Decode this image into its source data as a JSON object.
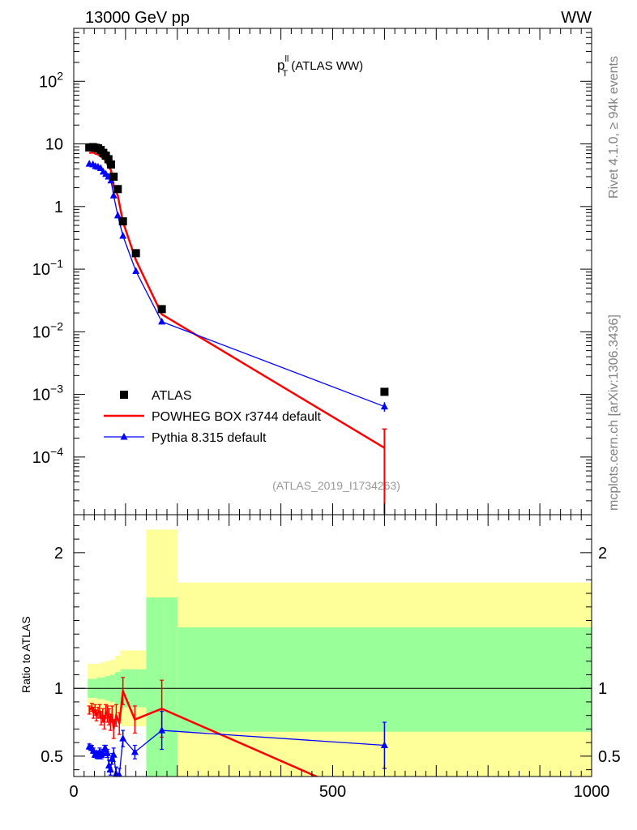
{
  "header": {
    "left": "13000 GeV pp",
    "right": "WW"
  },
  "side": {
    "rivet": "Rivet 4.1.0, ≥ 94k events",
    "mcplots": "mcplots.cern.ch [arXiv:1306.3436]"
  },
  "chart_data": {
    "type": "scatter",
    "title": {
      "main": "p",
      "sup": "ll",
      "sub": "T",
      "rest": " (ATLAS WW)"
    },
    "reference": "(ATLAS_2019_I1734263)",
    "xlim": [
      0,
      1000
    ],
    "main": {
      "ylog": true,
      "ylim": [
        1.2e-05,
        700
      ],
      "yticks": [
        {
          "base": "10",
          "exp": "2",
          "v": 100
        },
        {
          "base": "10",
          "exp": "",
          "v": 10
        },
        {
          "base": "1",
          "exp": "",
          "v": 1
        },
        {
          "base": "10",
          "exp": "−1",
          "v": 0.1
        },
        {
          "base": "10",
          "exp": "−2",
          "v": 0.01
        },
        {
          "base": "10",
          "exp": "−3",
          "v": 0.001
        },
        {
          "base": "10",
          "exp": "−4",
          "v": 0.0001
        }
      ]
    },
    "ratio": {
      "ylabel": "Ratio to ATLAS",
      "ylim": [
        0.35,
        2.28
      ],
      "yticks": [
        {
          "label": "0.5",
          "v": 0.5
        },
        {
          "label": "1",
          "v": 1
        },
        {
          "label": "2",
          "v": 2
        }
      ]
    },
    "xticks": [
      {
        "label": "0",
        "v": 0
      },
      {
        "label": "500",
        "v": 500
      },
      {
        "label": "1000",
        "v": 1000
      }
    ],
    "bins": [
      {
        "lo": 27,
        "hi": 35,
        "g": [
          0.93,
          1.07
        ],
        "y": [
          0.82,
          1.18
        ]
      },
      {
        "lo": 35,
        "hi": 40,
        "g": [
          0.93,
          1.07
        ],
        "y": [
          0.82,
          1.18
        ]
      },
      {
        "lo": 40,
        "hi": 45,
        "g": [
          0.93,
          1.07
        ],
        "y": [
          0.82,
          1.18
        ]
      },
      {
        "lo": 45,
        "hi": 50,
        "g": [
          0.92,
          1.08
        ],
        "y": [
          0.82,
          1.18
        ]
      },
      {
        "lo": 50,
        "hi": 55,
        "g": [
          0.92,
          1.08
        ],
        "y": [
          0.81,
          1.19
        ]
      },
      {
        "lo": 55,
        "hi": 60,
        "g": [
          0.92,
          1.08
        ],
        "y": [
          0.81,
          1.19
        ]
      },
      {
        "lo": 60,
        "hi": 65,
        "g": [
          0.91,
          1.09
        ],
        "y": [
          0.8,
          1.2
        ]
      },
      {
        "lo": 65,
        "hi": 70,
        "g": [
          0.91,
          1.09
        ],
        "y": [
          0.8,
          1.2
        ]
      },
      {
        "lo": 70,
        "hi": 75,
        "g": [
          0.9,
          1.1
        ],
        "y": [
          0.79,
          1.21
        ]
      },
      {
        "lo": 75,
        "hi": 80,
        "g": [
          0.9,
          1.1
        ],
        "y": [
          0.79,
          1.21
        ]
      },
      {
        "lo": 80,
        "hi": 90,
        "g": [
          0.88,
          1.12
        ],
        "y": [
          0.76,
          1.24
        ]
      },
      {
        "lo": 90,
        "hi": 100,
        "g": [
          0.86,
          1.14
        ],
        "y": [
          0.72,
          1.28
        ]
      },
      {
        "lo": 100,
        "hi": 110,
        "g": [
          0.86,
          1.14
        ],
        "y": [
          0.72,
          1.28
        ]
      },
      {
        "lo": 110,
        "hi": 120,
        "g": [
          0.86,
          1.14
        ],
        "y": [
          0.72,
          1.28
        ]
      },
      {
        "lo": 120,
        "hi": 130,
        "g": [
          0.86,
          1.14
        ],
        "y": [
          0.72,
          1.28
        ]
      },
      {
        "lo": 130,
        "hi": 140,
        "g": [
          0.86,
          1.14
        ],
        "y": [
          0.72,
          1.28
        ]
      },
      {
        "lo": 140,
        "hi": 155,
        "g": [
          0.3,
          1.67
        ],
        "y": [
          0.3,
          2.17
        ]
      },
      {
        "lo": 155,
        "hi": 175,
        "g": [
          0.3,
          1.67
        ],
        "y": [
          0.3,
          2.17
        ]
      },
      {
        "lo": 175,
        "hi": 200,
        "g": [
          0.3,
          1.67
        ],
        "y": [
          0.3,
          2.17
        ]
      },
      {
        "lo": 200,
        "hi": 1000,
        "g": [
          0.68,
          1.45
        ],
        "y": [
          0.3,
          1.78
        ]
      }
    ],
    "series": [
      {
        "name": "ATLAS",
        "color": "#000000",
        "marker": "square",
        "points": [
          {
            "x": 30,
            "y": 8.8
          },
          {
            "x": 37,
            "y": 8.9
          },
          {
            "x": 42,
            "y": 8.7
          },
          {
            "x": 47,
            "y": 8.5
          },
          {
            "x": 52,
            "y": 8.0
          },
          {
            "x": 57,
            "y": 7.2
          },
          {
            "x": 62,
            "y": 6.5
          },
          {
            "x": 67,
            "y": 5.7
          },
          {
            "x": 72,
            "y": 4.7
          },
          {
            "x": 77,
            "y": 3.0
          },
          {
            "x": 85,
            "y": 1.9
          },
          {
            "x": 95,
            "y": 0.58
          },
          {
            "x": 120,
            "y": 0.18
          },
          {
            "x": 170,
            "y": 0.023
          },
          {
            "x": 600,
            "y": 0.0011
          }
        ]
      },
      {
        "name": "POWHEG BOX r3744 default",
        "color": "#ff0000",
        "marker": "line",
        "points": [
          {
            "x": 30,
            "y": 7.2
          },
          {
            "x": 37,
            "y": 7.3
          },
          {
            "x": 42,
            "y": 7.0
          },
          {
            "x": 47,
            "y": 6.8
          },
          {
            "x": 52,
            "y": 6.3
          },
          {
            "x": 57,
            "y": 5.9
          },
          {
            "x": 62,
            "y": 5.4
          },
          {
            "x": 67,
            "y": 4.3
          },
          {
            "x": 72,
            "y": 3.8
          },
          {
            "x": 77,
            "y": 2.1
          },
          {
            "x": 85,
            "y": 1.5
          },
          {
            "x": 95,
            "y": 0.57
          },
          {
            "x": 120,
            "y": 0.14
          },
          {
            "x": 170,
            "y": 0.019
          },
          {
            "x": 600,
            "y": 0.00014
          }
        ],
        "ratio": [
          {
            "x": 30,
            "r": 0.84,
            "e": 0.03
          },
          {
            "x": 35,
            "r": 0.86,
            "e": 0.03
          },
          {
            "x": 38,
            "r": 0.82,
            "e": 0.04
          },
          {
            "x": 41,
            "r": 0.84,
            "e": 0.04
          },
          {
            "x": 44,
            "r": 0.8,
            "e": 0.04
          },
          {
            "x": 47,
            "r": 0.82,
            "e": 0.04
          },
          {
            "x": 50,
            "r": 0.83,
            "e": 0.05
          },
          {
            "x": 53,
            "r": 0.78,
            "e": 0.05
          },
          {
            "x": 56,
            "r": 0.8,
            "e": 0.05
          },
          {
            "x": 59,
            "r": 0.75,
            "e": 0.05
          },
          {
            "x": 62,
            "r": 0.83,
            "e": 0.05
          },
          {
            "x": 65,
            "r": 0.81,
            "e": 0.06
          },
          {
            "x": 68,
            "r": 0.79,
            "e": 0.06
          },
          {
            "x": 71,
            "r": 0.75,
            "e": 0.06
          },
          {
            "x": 74,
            "r": 0.81,
            "e": 0.06
          },
          {
            "x": 77,
            "r": 0.7,
            "e": 0.07
          },
          {
            "x": 82,
            "r": 0.8,
            "e": 0.08
          },
          {
            "x": 88,
            "r": 0.74,
            "e": 0.08
          },
          {
            "x": 95,
            "r": 0.98,
            "e": 0.1
          },
          {
            "x": 118,
            "r": 0.77,
            "e": 0.1
          },
          {
            "x": 170,
            "r": 0.85,
            "e": 0.21
          },
          {
            "x": 600,
            "r": 0.13,
            "e": 0.12
          }
        ]
      },
      {
        "name": "Pythia 8.315 default",
        "color": "#0000ff",
        "marker": "triangle",
        "points": [
          {
            "x": 30,
            "y": 4.8
          },
          {
            "x": 37,
            "y": 4.7
          },
          {
            "x": 42,
            "y": 4.4
          },
          {
            "x": 47,
            "y": 4.3
          },
          {
            "x": 52,
            "y": 4.1
          },
          {
            "x": 57,
            "y": 3.6
          },
          {
            "x": 62,
            "y": 3.3
          },
          {
            "x": 67,
            "y": 3.0
          },
          {
            "x": 72,
            "y": 2.6
          },
          {
            "x": 77,
            "y": 1.5
          },
          {
            "x": 85,
            "y": 0.72
          },
          {
            "x": 95,
            "y": 0.34
          },
          {
            "x": 120,
            "y": 0.093
          },
          {
            "x": 170,
            "y": 0.0145
          },
          {
            "x": 600,
            "y": 0.00064
          }
        ],
        "ratio": [
          {
            "x": 30,
            "r": 0.57,
            "e": 0.02
          },
          {
            "x": 35,
            "r": 0.56,
            "e": 0.02
          },
          {
            "x": 38,
            "r": 0.54,
            "e": 0.02
          },
          {
            "x": 41,
            "r": 0.51,
            "e": 0.02
          },
          {
            "x": 44,
            "r": 0.52,
            "e": 0.02
          },
          {
            "x": 47,
            "r": 0.5,
            "e": 0.02
          },
          {
            "x": 50,
            "r": 0.53,
            "e": 0.03
          },
          {
            "x": 53,
            "r": 0.51,
            "e": 0.03
          },
          {
            "x": 56,
            "r": 0.52,
            "e": 0.03
          },
          {
            "x": 59,
            "r": 0.55,
            "e": 0.03
          },
          {
            "x": 62,
            "r": 0.55,
            "e": 0.03
          },
          {
            "x": 65,
            "r": 0.52,
            "e": 0.03
          },
          {
            "x": 68,
            "r": 0.43,
            "e": 0.04
          },
          {
            "x": 71,
            "r": 0.4,
            "e": 0.04
          },
          {
            "x": 74,
            "r": 0.48,
            "e": 0.04
          },
          {
            "x": 77,
            "r": 0.51,
            "e": 0.05
          },
          {
            "x": 82,
            "r": 0.37,
            "e": 0.05
          },
          {
            "x": 88,
            "r": 0.36,
            "e": 0.05
          },
          {
            "x": 95,
            "r": 0.63,
            "e": 0.06
          },
          {
            "x": 118,
            "r": 0.53,
            "e": 0.05
          },
          {
            "x": 170,
            "r": 0.69,
            "e": 0.14
          },
          {
            "x": 600,
            "r": 0.58,
            "e": 0.17
          }
        ]
      }
    ],
    "colors": {
      "green": "#99ff99",
      "yellow": "#ffff99",
      "frame": "#000000"
    }
  }
}
